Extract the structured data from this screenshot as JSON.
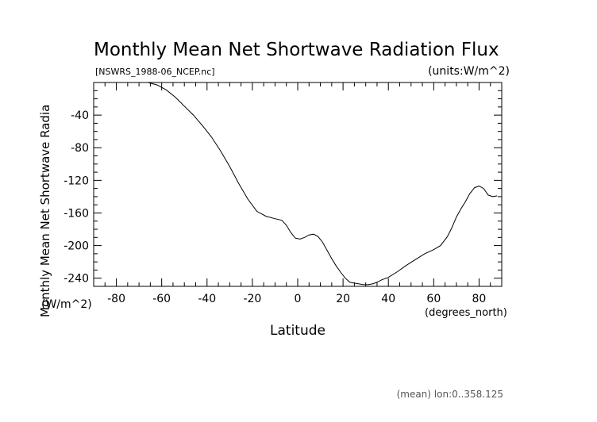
{
  "chart_data": {
    "type": "line",
    "title": "Monthly Mean Net Shortwave Radiation Flux",
    "subtitle_left": "[NSWRS_1988-06_NCEP.nc]",
    "subtitle_right": "(units:W/m^2)",
    "xlabel": "Latitude",
    "xunit": "(degrees_north)",
    "ylabel": "Monthly Mean Net Shortwave Radia",
    "yunit": "(W/m^2)",
    "footer": "(mean) lon:0..358.125",
    "xlim": [
      -90,
      90
    ],
    "ylim": [
      -250,
      0
    ],
    "xticks": [
      -80,
      -60,
      -40,
      -20,
      0,
      20,
      40,
      60,
      80
    ],
    "yticks": [
      -240,
      -200,
      -160,
      -120,
      -80,
      -40
    ],
    "grid": false,
    "series": [
      {
        "x": [
          -66,
          -62,
          -58,
          -54,
          -50,
          -46,
          -42,
          -38,
          -34,
          -30,
          -26,
          -22,
          -18,
          -14,
          -10,
          -7,
          -5,
          -3,
          -1,
          1,
          3,
          5,
          7,
          9,
          11,
          13,
          15,
          17,
          19,
          21,
          23,
          25,
          27,
          29,
          31,
          33,
          35,
          37,
          40,
          44,
          48,
          52,
          56,
          60,
          63,
          66,
          68,
          70,
          72,
          74,
          76,
          78,
          80,
          82,
          84,
          86,
          88
        ],
        "y": [
          0,
          -3,
          -9,
          -18,
          -29,
          -40,
          -53,
          -67,
          -84,
          -103,
          -124,
          -143,
          -158,
          -164,
          -167,
          -169,
          -175,
          -184,
          -191,
          -192,
          -190,
          -187,
          -186,
          -189,
          -196,
          -206,
          -216,
          -225,
          -233,
          -240,
          -245,
          -246,
          -247,
          -248,
          -248,
          -247,
          -245,
          -242,
          -239,
          -232,
          -224,
          -217,
          -210,
          -205,
          -200,
          -189,
          -178,
          -165,
          -155,
          -146,
          -136,
          -129,
          -127,
          -130,
          -138,
          -140,
          -139
        ]
      }
    ]
  }
}
